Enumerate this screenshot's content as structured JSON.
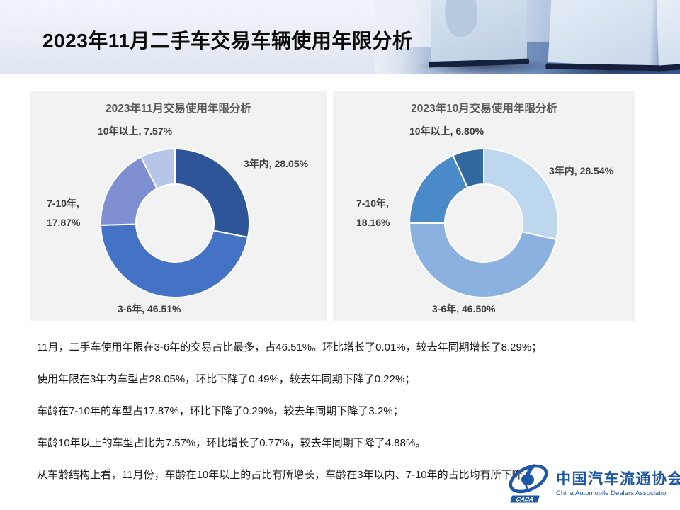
{
  "slide": {
    "title": "2023年11月二手车交易车辆使用年限分析"
  },
  "chart_data": [
    {
      "type": "pie",
      "variant": "donut",
      "title": "2023年11月交易使用年限分析",
      "unit": "%",
      "start_angle_deg": 0,
      "direction": "clockwise",
      "legend": "none",
      "slices": [
        {
          "name": "3年内",
          "value": 28.05,
          "color": "#2E5597"
        },
        {
          "name": "3-6年",
          "value": 46.51,
          "color": "#4472C4"
        },
        {
          "name": "7-10年",
          "value": 17.87,
          "color": "#7E90D2"
        },
        {
          "name": "10年以上",
          "value": 7.57,
          "color": "#B7C5E9"
        }
      ],
      "labels": {
        "top_left": "10年以上, 7.57%",
        "right": "3年内, 28.05%",
        "left_line1": "7-10年,",
        "left_line2": "17.87%",
        "bottom": "3-6年, 46.51%"
      }
    },
    {
      "type": "pie",
      "variant": "donut",
      "title": "2023年10月交易使用年限分析",
      "unit": "%",
      "start_angle_deg": 0,
      "direction": "clockwise",
      "legend": "none",
      "slices": [
        {
          "name": "3年内",
          "value": 28.54,
          "color": "#BDD7EE"
        },
        {
          "name": "3-6年",
          "value": 46.5,
          "color": "#8AB1DF"
        },
        {
          "name": "7-10年",
          "value": 18.16,
          "color": "#4A8AC8"
        },
        {
          "name": "10年以上",
          "value": 6.8,
          "color": "#31689E"
        }
      ],
      "labels": {
        "top_left": "10年以上, 6.80%",
        "right": "3年内, 28.54%",
        "left_line1": "7-10年,",
        "left_line2": "18.16%",
        "bottom": "3-6年, 46.50%"
      }
    }
  ],
  "bullets": [
    "11月，二手车使用年限在3-6年的交易占比最多，占46.51%。环比增长了0.01%，较去年同期增长了8.29%；",
    "使用年限在3年内车型占28.05%，环比下降了0.49%，较去年同期下降了0.22%；",
    "车龄在7-10年的车型占17.87%，环比下降了0.29%，较去年同期下降了3.2%；",
    "车龄10年以上的车型占比为7.57%，环比增长了0.77%，较去年同期下降了4.88%。",
    "从车龄结构上看，11月份，车龄在10年以上的占比有所增长，车龄在3年以内、7-10年的占比均有所下降。"
  ],
  "logo": {
    "name_cn": "中国汽车流通协会",
    "name_en": "China Automobile Dealers Association",
    "badge": "CADA",
    "brand_color": "#1E56A8"
  },
  "colors": {
    "panel_bg": "#F2F2F2",
    "chart_title": "#595959",
    "data_label": "#3F3F3F",
    "body_text": "#1A1A1A"
  }
}
